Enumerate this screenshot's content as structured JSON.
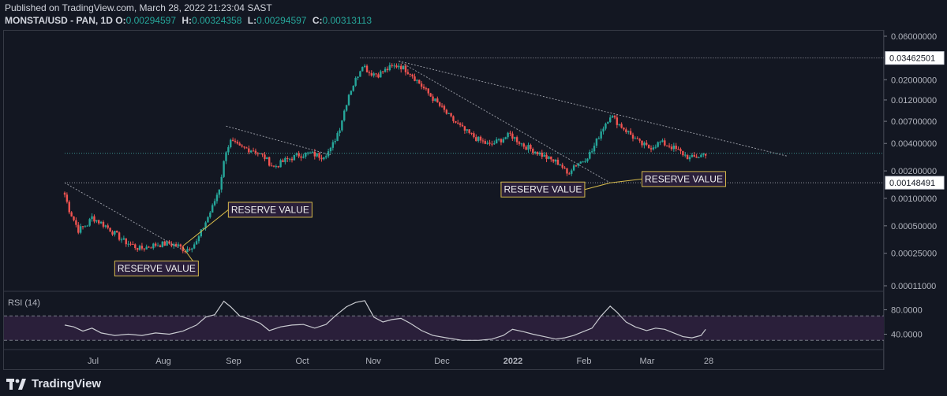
{
  "header": {
    "published": "Published on TradingView.com, March 28, 2022 21:23:04 SAST",
    "symbol": "MONSTA/USD - PAN, 1D",
    "ohlc": [
      {
        "k": "O:",
        "v": "0.00294597"
      },
      {
        "k": "H:",
        "v": "0.00324358"
      },
      {
        "k": "L:",
        "v": "0.00294597"
      },
      {
        "k": "C:",
        "v": "0.00313113"
      }
    ]
  },
  "footer": {
    "brand": "TradingView"
  },
  "colors": {
    "up": "#26a69a",
    "down": "#ef5350",
    "annotation": "#d4b84a",
    "line": "#b2b5be",
    "rsi_band": "#2a1f3a"
  },
  "chart_data": {
    "type": "candlestick",
    "price_scale": "log",
    "y_ticks": [
      0.06,
      0.034,
      0.02,
      0.012,
      0.007,
      0.004,
      0.002,
      0.001,
      0.0005,
      0.00025,
      0.00011
    ],
    "y_tick_labels": [
      "0.06000000",
      "0.03462501",
      "0.02000000",
      "0.01200000",
      "0.00700000",
      "0.00400000",
      "0.00200000",
      "0.00148491",
      "0.00100000",
      "0.00050000",
      "0.00025000",
      "0.00011000"
    ],
    "price_labels": [
      {
        "value": 0.03462501,
        "text": "0.03462501"
      },
      {
        "value": 0.00148491,
        "text": "0.00148491"
      }
    ],
    "x_ticks": [
      "Jul",
      "Aug",
      "Sep",
      "Oct",
      "Nov",
      "Dec",
      "2022",
      "Feb",
      "Mar",
      "28"
    ],
    "anchors": [
      {
        "day": 0,
        "price": 0.0011
      },
      {
        "day": 2,
        "price": 0.00075
      },
      {
        "day": 6,
        "price": 0.00045
      },
      {
        "day": 10,
        "price": 0.00052
      },
      {
        "day": 12,
        "price": 0.00062
      },
      {
        "day": 18,
        "price": 0.0005
      },
      {
        "day": 26,
        "price": 0.00034
      },
      {
        "day": 33,
        "price": 0.00028
      },
      {
        "day": 40,
        "price": 0.00031
      },
      {
        "day": 46,
        "price": 0.00032
      },
      {
        "day": 50,
        "price": 0.0003
      },
      {
        "day": 53,
        "price": 0.00027
      },
      {
        "day": 58,
        "price": 0.00033
      },
      {
        "day": 62,
        "price": 0.00055
      },
      {
        "day": 65,
        "price": 0.0008
      },
      {
        "day": 68,
        "price": 0.0013
      },
      {
        "day": 71,
        "price": 0.0034
      },
      {
        "day": 73,
        "price": 0.0042
      },
      {
        "day": 77,
        "price": 0.0036
      },
      {
        "day": 83,
        "price": 0.0034
      },
      {
        "day": 88,
        "price": 0.0028
      },
      {
        "day": 92,
        "price": 0.0022
      },
      {
        "day": 97,
        "price": 0.0026
      },
      {
        "day": 103,
        "price": 0.003
      },
      {
        "day": 108,
        "price": 0.0031
      },
      {
        "day": 113,
        "price": 0.0029
      },
      {
        "day": 117,
        "price": 0.0034
      },
      {
        "day": 121,
        "price": 0.006
      },
      {
        "day": 125,
        "price": 0.014
      },
      {
        "day": 128,
        "price": 0.02
      },
      {
        "day": 131,
        "price": 0.03
      },
      {
        "day": 134,
        "price": 0.024
      },
      {
        "day": 138,
        "price": 0.023
      },
      {
        "day": 143,
        "price": 0.027
      },
      {
        "day": 147,
        "price": 0.029
      },
      {
        "day": 152,
        "price": 0.024
      },
      {
        "day": 158,
        "price": 0.016
      },
      {
        "day": 164,
        "price": 0.011
      },
      {
        "day": 170,
        "price": 0.0075
      },
      {
        "day": 176,
        "price": 0.0055
      },
      {
        "day": 182,
        "price": 0.0044
      },
      {
        "day": 187,
        "price": 0.0038
      },
      {
        "day": 191,
        "price": 0.0043
      },
      {
        "day": 196,
        "price": 0.005
      },
      {
        "day": 202,
        "price": 0.0038
      },
      {
        "day": 208,
        "price": 0.0032
      },
      {
        "day": 213,
        "price": 0.0027
      },
      {
        "day": 218,
        "price": 0.0024
      },
      {
        "day": 221,
        "price": 0.00185
      },
      {
        "day": 224,
        "price": 0.0023
      },
      {
        "day": 228,
        "price": 0.0026
      },
      {
        "day": 232,
        "price": 0.0033
      },
      {
        "day": 236,
        "price": 0.0055
      },
      {
        "day": 240,
        "price": 0.0082
      },
      {
        "day": 244,
        "price": 0.0065
      },
      {
        "day": 249,
        "price": 0.005
      },
      {
        "day": 253,
        "price": 0.004
      },
      {
        "day": 257,
        "price": 0.0036
      },
      {
        "day": 262,
        "price": 0.0041
      },
      {
        "day": 266,
        "price": 0.0038
      },
      {
        "day": 271,
        "price": 0.0032
      },
      {
        "day": 275,
        "price": 0.00275
      },
      {
        "day": 279,
        "price": 0.0029
      },
      {
        "day": 282,
        "price": 0.00313
      }
    ],
    "trendlines": [
      {
        "from": {
          "day": 0,
          "price": 0.00148
        },
        "to": {
          "day": 52,
          "price": 0.00027
        }
      },
      {
        "from": {
          "day": 71,
          "price": 0.0062
        },
        "to": {
          "day": 117,
          "price": 0.003
        }
      },
      {
        "from": {
          "day": 147,
          "price": 0.032
        },
        "to": {
          "day": 240,
          "price": 0.00148
        }
      },
      {
        "from": {
          "day": 147,
          "price": 0.032
        },
        "to": {
          "day": 318,
          "price": 0.0029
        }
      }
    ],
    "horizontal_lines": [
      {
        "price": 0.03462501,
        "from_day": 130
      },
      {
        "price": 0.00148491,
        "from_day": 0
      },
      {
        "price": 0.00313,
        "from_day": 0
      }
    ],
    "annotations": [
      {
        "text": "RESERVE VALUE",
        "day": 22,
        "price": 0.00017,
        "target": {
          "day": 52,
          "price": 0.00029
        }
      },
      {
        "text": "RESERVE VALUE",
        "day": 72,
        "price": 0.00075,
        "target": {
          "day": 52,
          "price": 0.0003
        }
      },
      {
        "text": "RESERVE VALUE",
        "day": 192,
        "price": 0.00125,
        "target": {
          "day": 240,
          "price": 0.00148
        }
      },
      {
        "text": "RESERVE VALUE",
        "day": 254,
        "price": 0.00163,
        "target": {
          "day": 240,
          "price": 0.00148
        }
      }
    ],
    "rsi": {
      "label": "RSI (14)",
      "ticks": [
        "80.0000",
        "40.0000"
      ],
      "tick_values": [
        80,
        40
      ],
      "upper_band": 70,
      "lower_band": 30,
      "values": [
        {
          "day": 0,
          "v": 55
        },
        {
          "day": 4,
          "v": 52
        },
        {
          "day": 8,
          "v": 45
        },
        {
          "day": 12,
          "v": 50
        },
        {
          "day": 16,
          "v": 42
        },
        {
          "day": 22,
          "v": 38
        },
        {
          "day": 28,
          "v": 40
        },
        {
          "day": 34,
          "v": 38
        },
        {
          "day": 40,
          "v": 42
        },
        {
          "day": 46,
          "v": 40
        },
        {
          "day": 52,
          "v": 45
        },
        {
          "day": 58,
          "v": 55
        },
        {
          "day": 62,
          "v": 68
        },
        {
          "day": 66,
          "v": 72
        },
        {
          "day": 70,
          "v": 94
        },
        {
          "day": 73,
          "v": 85
        },
        {
          "day": 77,
          "v": 70
        },
        {
          "day": 82,
          "v": 64
        },
        {
          "day": 86,
          "v": 58
        },
        {
          "day": 90,
          "v": 46
        },
        {
          "day": 95,
          "v": 52
        },
        {
          "day": 100,
          "v": 55
        },
        {
          "day": 105,
          "v": 56
        },
        {
          "day": 110,
          "v": 50
        },
        {
          "day": 115,
          "v": 56
        },
        {
          "day": 119,
          "v": 70
        },
        {
          "day": 124,
          "v": 85
        },
        {
          "day": 128,
          "v": 92
        },
        {
          "day": 132,
          "v": 95
        },
        {
          "day": 136,
          "v": 68
        },
        {
          "day": 140,
          "v": 60
        },
        {
          "day": 144,
          "v": 64
        },
        {
          "day": 148,
          "v": 66
        },
        {
          "day": 152,
          "v": 58
        },
        {
          "day": 157,
          "v": 46
        },
        {
          "day": 162,
          "v": 38
        },
        {
          "day": 168,
          "v": 34
        },
        {
          "day": 175,
          "v": 30
        },
        {
          "day": 182,
          "v": 30
        },
        {
          "day": 188,
          "v": 32
        },
        {
          "day": 193,
          "v": 38
        },
        {
          "day": 197,
          "v": 48
        },
        {
          "day": 202,
          "v": 44
        },
        {
          "day": 206,
          "v": 40
        },
        {
          "day": 211,
          "v": 36
        },
        {
          "day": 216,
          "v": 32
        },
        {
          "day": 220,
          "v": 34
        },
        {
          "day": 224,
          "v": 38
        },
        {
          "day": 228,
          "v": 44
        },
        {
          "day": 232,
          "v": 50
        },
        {
          "day": 236,
          "v": 70
        },
        {
          "day": 240,
          "v": 86
        },
        {
          "day": 243,
          "v": 76
        },
        {
          "day": 247,
          "v": 60
        },
        {
          "day": 251,
          "v": 52
        },
        {
          "day": 256,
          "v": 46
        },
        {
          "day": 260,
          "v": 50
        },
        {
          "day": 264,
          "v": 48
        },
        {
          "day": 268,
          "v": 42
        },
        {
          "day": 272,
          "v": 36
        },
        {
          "day": 276,
          "v": 34
        },
        {
          "day": 280,
          "v": 38
        },
        {
          "day": 282,
          "v": 48
        }
      ]
    }
  }
}
